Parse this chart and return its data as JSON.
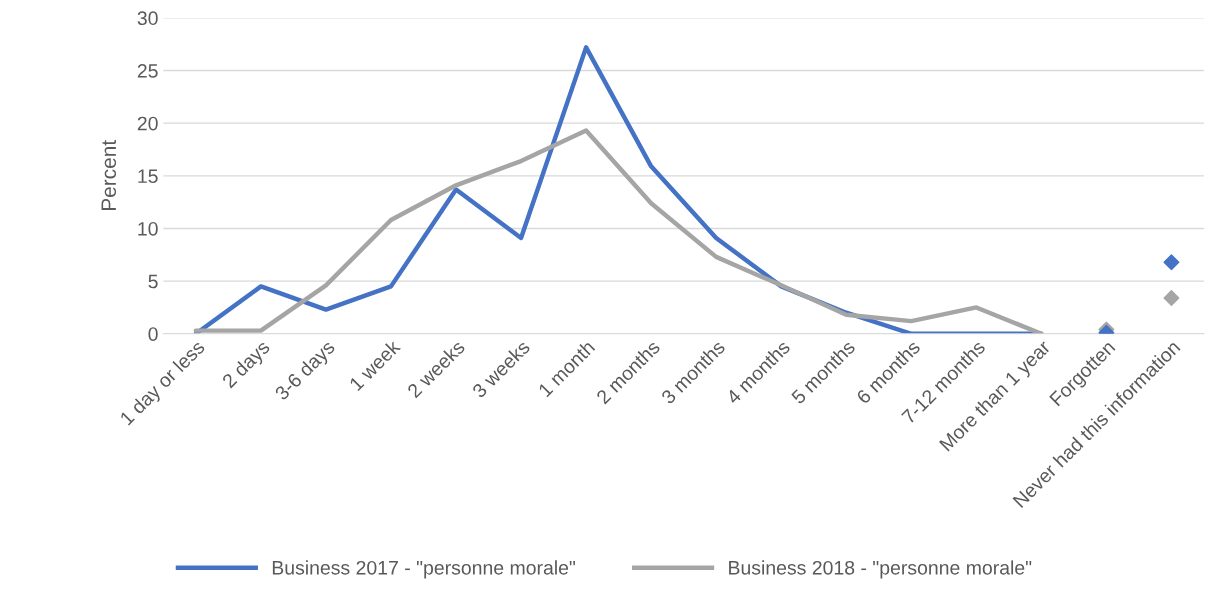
{
  "chart_data": {
    "type": "line",
    "ylabel": "Percent",
    "categories": [
      "1 day or less",
      "2 days",
      "3-6 days",
      "1 week",
      "2 weeks",
      "3 weeks",
      "1 month",
      "2 months",
      "3 months",
      "4 months",
      "5 months",
      "6 months",
      "7-12 months",
      "More than 1 year",
      "Forgotten",
      "Never had this information"
    ],
    "series": [
      {
        "name": "Business 2017 - \"personne morale\"",
        "color": "#4472c4",
        "values": [
          0,
          4.5,
          2.3,
          4.5,
          13.7,
          9.1,
          27.2,
          15.9,
          9.1,
          4.5,
          2.0,
          0,
          0,
          0,
          null,
          null
        ]
      },
      {
        "name": "Business 2018 - \"personne morale\"",
        "color": "#a5a5a5",
        "values": [
          0.3,
          0.3,
          4.6,
          10.8,
          14.1,
          16.4,
          19.3,
          12.4,
          7.3,
          4.6,
          1.8,
          1.2,
          2.5,
          0,
          null,
          null
        ]
      },
      {
        "type": "scatter",
        "color": "#a5a5a5",
        "marker": "diamond",
        "x": [
          "Forgotten",
          "Never had this information"
        ],
        "values": [
          0.4,
          3.4
        ]
      },
      {
        "type": "scatter",
        "color": "#4472c4",
        "marker": "diamond",
        "x": [
          "Forgotten",
          "Never had this information"
        ],
        "values": [
          0.1,
          6.8
        ]
      }
    ],
    "ylim": [
      0,
      30
    ],
    "yticks": [
      0,
      5,
      10,
      15,
      20,
      25,
      30
    ],
    "grid": "y",
    "legend": "bottom",
    "marker": "none",
    "line_style": "solid"
  }
}
